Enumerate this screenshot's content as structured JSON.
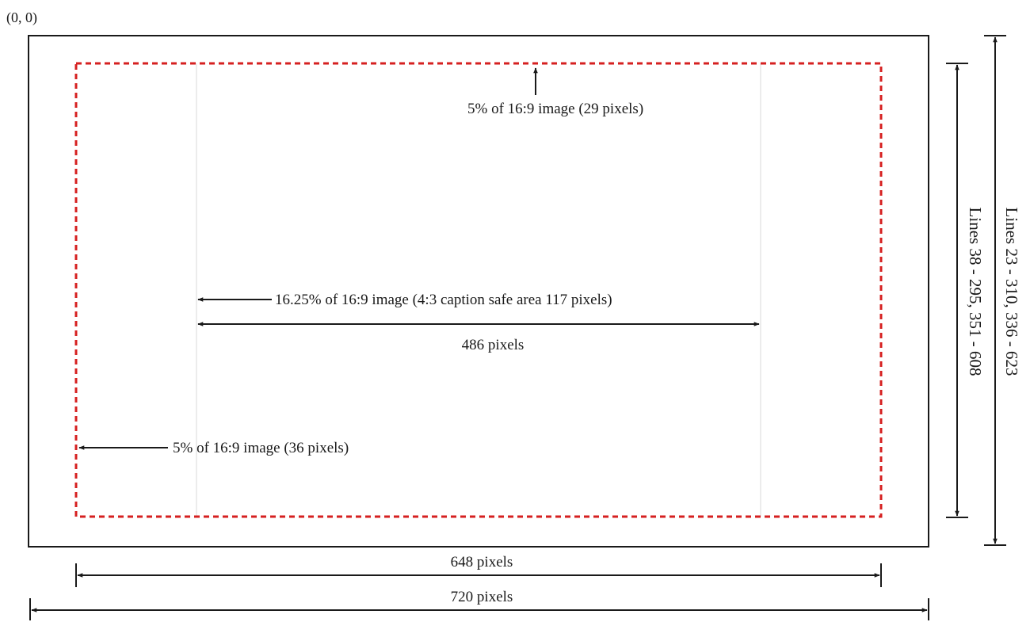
{
  "origin_label": "(0, 0)",
  "labels": {
    "top_margin": "5% of 16:9 image  (29 pixels)",
    "caption_safe": "16.25% of 16:9 image (4:3 caption safe area 117 pixels)",
    "center_width": "486 pixels",
    "left_margin": "5% of 16:9 image (36 pixels)",
    "safe_width": "648 pixels",
    "full_width": "720 pixels",
    "safe_lines": "Lines 38 - 295, 351 - 608",
    "full_lines": "Lines 23 - 310, 336 - 623"
  },
  "colors": {
    "frame": "#1a1a1a",
    "safe_area_dash": "#d62020",
    "caption_guide": "#d8d8d8",
    "arrow": "#1a1a1a"
  }
}
